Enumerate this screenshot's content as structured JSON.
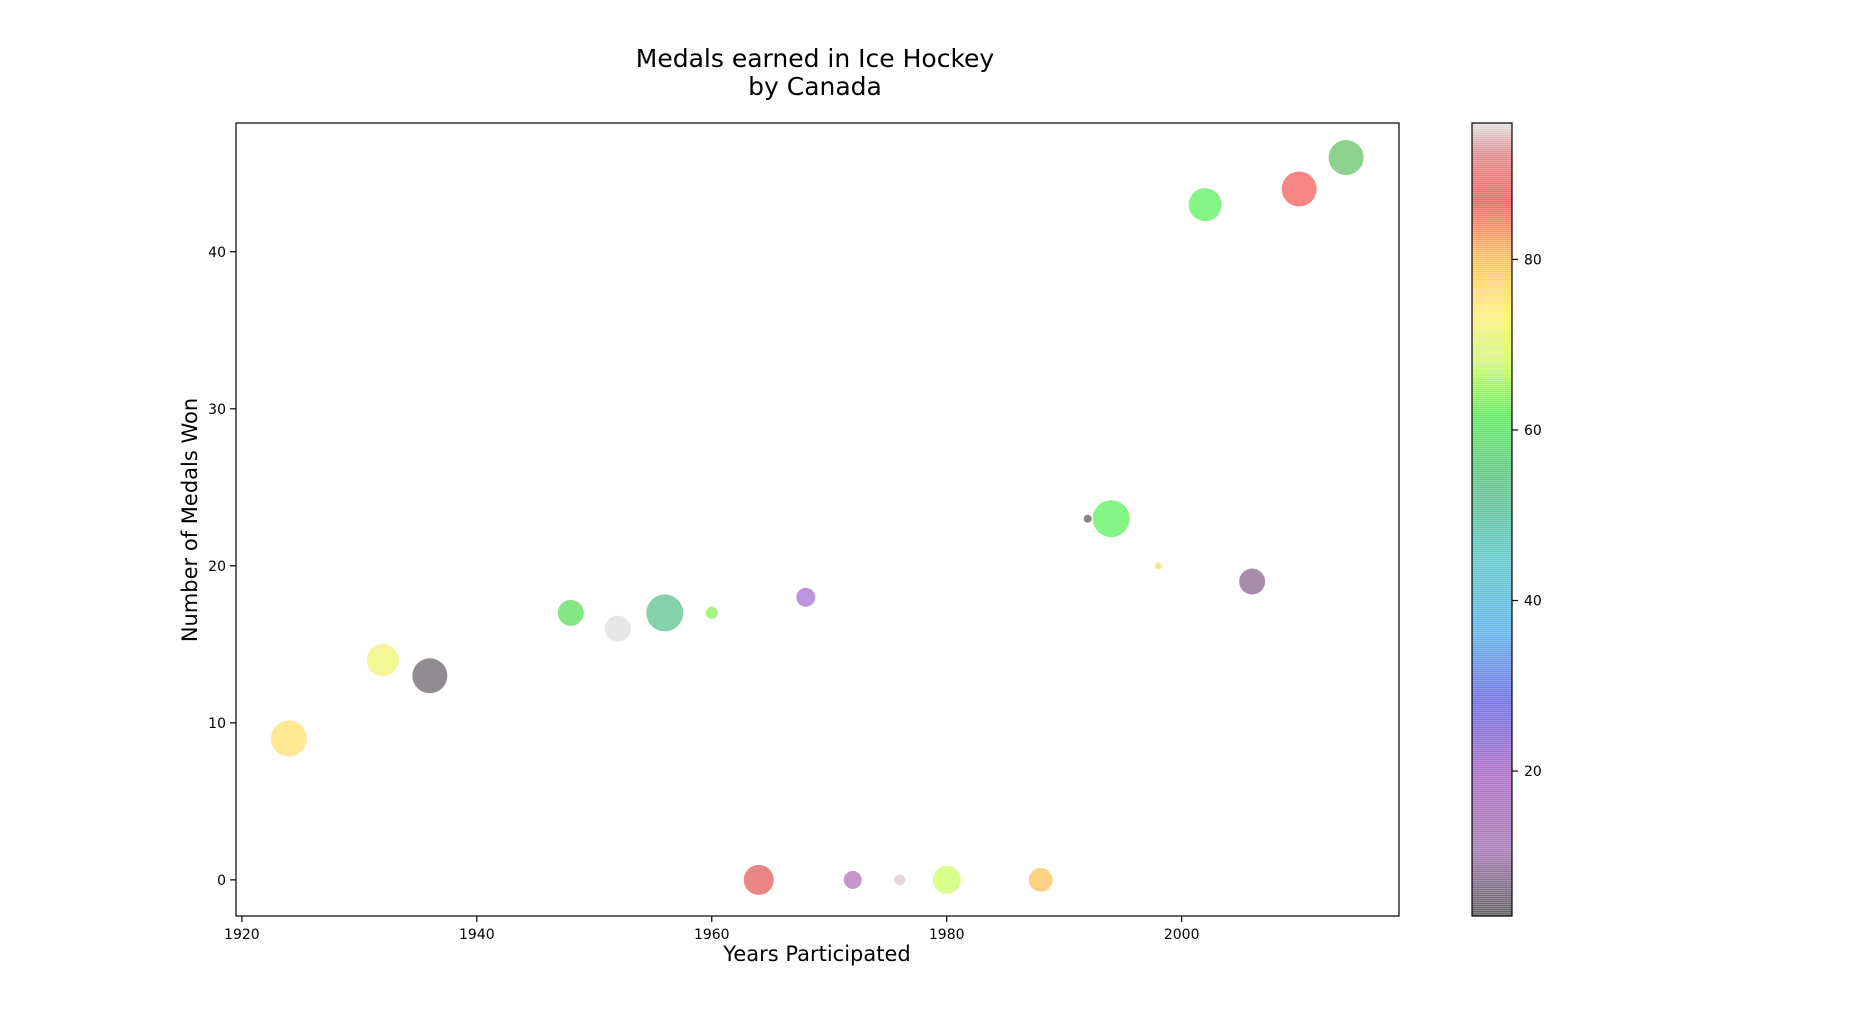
{
  "chart_data": {
    "type": "scatter",
    "title": [
      "Medals earned in Ice Hockey",
      "by Canada"
    ],
    "xlabel": "Years Participated",
    "ylabel": "Number of Medals Won",
    "xlim": [
      1919.5,
      2018.5
    ],
    "ylim": [
      -2.3,
      48.2
    ],
    "xticks": [
      1920,
      1940,
      1960,
      1980,
      2000
    ],
    "yticks": [
      0,
      10,
      20,
      30,
      40
    ],
    "grid": false,
    "colorbar": {
      "colormap": "nipy_spectral-like",
      "range": [
        3,
        96
      ],
      "ticks": [
        20,
        40,
        60,
        80
      ]
    },
    "points": [
      {
        "x": 1924,
        "y": 9,
        "size": 36,
        "color": "#ffd84a"
      },
      {
        "x": 1932,
        "y": 14,
        "size": 32,
        "color": "#eef050"
      },
      {
        "x": 1936,
        "y": 13,
        "size": 35,
        "color": "#4a3d4a"
      },
      {
        "x": 1948,
        "y": 17,
        "size": 26,
        "color": "#33d633"
      },
      {
        "x": 1952,
        "y": 16,
        "size": 26,
        "color": "#d6d6d6"
      },
      {
        "x": 1956,
        "y": 17,
        "size": 37,
        "color": "#33b36f"
      },
      {
        "x": 1960,
        "y": 17,
        "size": 12,
        "color": "#66ee33"
      },
      {
        "x": 1964,
        "y": 0,
        "size": 30,
        "color": "#d93333"
      },
      {
        "x": 1968,
        "y": 18,
        "size": 19,
        "color": "#8e4fcc"
      },
      {
        "x": 1972,
        "y": 0,
        "size": 18,
        "color": "#9e4fa8"
      },
      {
        "x": 1976,
        "y": 0,
        "size": 11,
        "color": "#d6bcc8"
      },
      {
        "x": 1980,
        "y": 0,
        "size": 28,
        "color": "#bfff40"
      },
      {
        "x": 1988,
        "y": 0,
        "size": 24,
        "color": "#ffb333"
      },
      {
        "x": 1992,
        "y": 23,
        "size": 8,
        "color": "#333333"
      },
      {
        "x": 1994,
        "y": 23,
        "size": 37,
        "color": "#33ee33"
      },
      {
        "x": 1998,
        "y": 20,
        "size": 7,
        "color": "#ffd633"
      },
      {
        "x": 2002,
        "y": 43,
        "size": 33,
        "color": "#33ee33"
      },
      {
        "x": 2006,
        "y": 19,
        "size": 26,
        "color": "#6f3d73"
      },
      {
        "x": 2010,
        "y": 44,
        "size": 35,
        "color": "#f23333"
      },
      {
        "x": 2014,
        "y": 46,
        "size": 35,
        "color": "#40b340"
      }
    ]
  }
}
